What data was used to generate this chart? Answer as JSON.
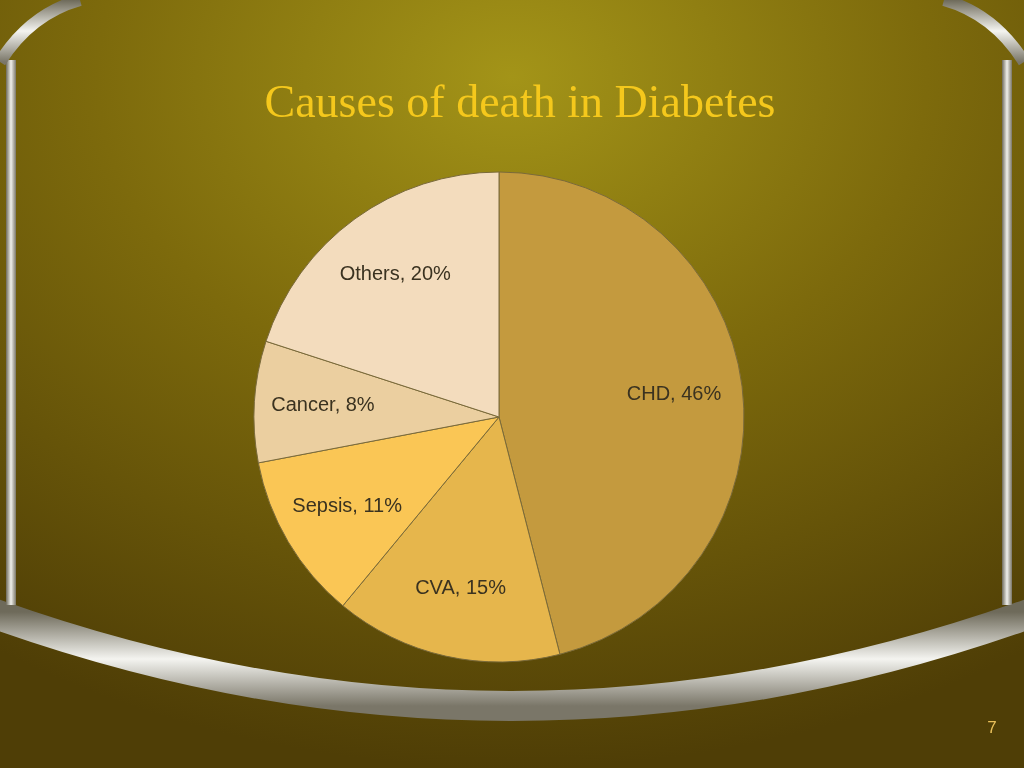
{
  "chart_data": {
    "type": "pie",
    "title": "Causes of death in Diabetes",
    "categories": [
      "CHD",
      "CVA",
      "Sepsis",
      "Cancer",
      "Others"
    ],
    "values": [
      46,
      15,
      11,
      8,
      20
    ],
    "colors": [
      "#c49a3e",
      "#e6b64c",
      "#fac655",
      "#ebcfa0",
      "#f3dcbd"
    ],
    "value_labels": [
      "46%",
      "15%",
      "11%",
      "8%",
      "20%"
    ],
    "annotations": [
      "7"
    ]
  }
}
